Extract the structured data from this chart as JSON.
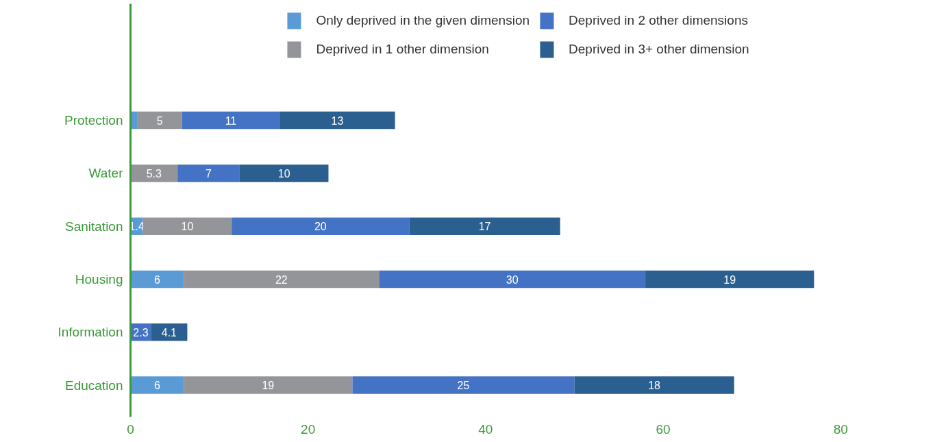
{
  "chart_data": {
    "type": "bar",
    "orientation": "horizontal",
    "stacked": true,
    "categories": [
      "Protection",
      "Water",
      "Sanitation",
      "Housing",
      "Information",
      "Education"
    ],
    "series": [
      {
        "name": "Only deprived in the given dimension",
        "color": "#5b9bd5",
        "values": [
          0.8,
          null,
          1.4,
          6,
          null,
          6
        ],
        "value_labels": [
          null,
          null,
          "1.4",
          "6",
          null,
          "6"
        ]
      },
      {
        "name": "Deprived in 1 other dimension",
        "color": "#939598",
        "values": [
          5,
          5.3,
          10,
          22,
          null,
          19
        ],
        "value_labels": [
          "5",
          "5.3",
          "10",
          "22",
          null,
          "19"
        ]
      },
      {
        "name": "Deprived in 2 other dimensions",
        "color": "#4472c4",
        "values": [
          11,
          7,
          20,
          30,
          2.3,
          25
        ],
        "value_labels": [
          "11",
          "7",
          "20",
          "30",
          "2.3",
          "25"
        ]
      },
      {
        "name": "Deprived in 3+ other dimension",
        "color": "#2a5f8f",
        "values": [
          13,
          10,
          17,
          19,
          4.1,
          18
        ],
        "value_labels": [
          "13",
          "10",
          "17",
          "19",
          "4.1",
          "18"
        ]
      }
    ],
    "xlim": [
      0,
      80
    ],
    "xticks": [
      0,
      20,
      40,
      60,
      80
    ],
    "grid": false,
    "legend": "top"
  }
}
